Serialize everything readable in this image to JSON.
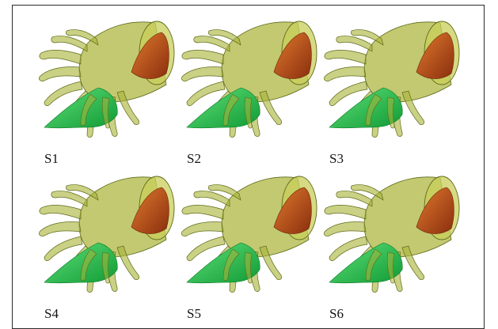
{
  "panels": [
    {
      "id": "S1",
      "label": "S1"
    },
    {
      "id": "S2",
      "label": "S2"
    },
    {
      "id": "S3",
      "label": "S3"
    },
    {
      "id": "S4",
      "label": "S4"
    },
    {
      "id": "S5",
      "label": "S5"
    },
    {
      "id": "S6",
      "label": "S6"
    }
  ],
  "colors": {
    "shell_fill": "#aab43a",
    "shell_edge": "#5f6a18",
    "cone_orange": "#c4521c",
    "cone_green": "#22c04a",
    "frame": "#2b2b2b"
  },
  "icons": {
    "model": "twin-cone-fibrous-shell"
  }
}
